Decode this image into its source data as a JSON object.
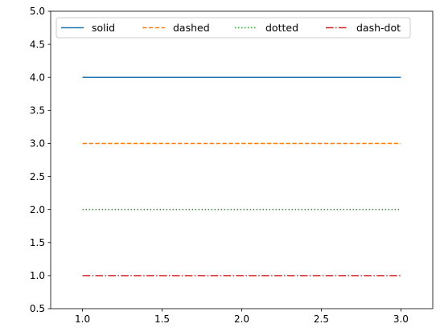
{
  "chart_data": {
    "type": "line",
    "title": "",
    "xlabel": "",
    "ylabel": "",
    "xlim": [
      0.8,
      3.2
    ],
    "ylim": [
      0.5,
      5.0
    ],
    "xticks": [
      1.0,
      1.5,
      2.0,
      2.5,
      3.0
    ],
    "xtick_labels": [
      "1.0",
      "1.5",
      "2.0",
      "2.5",
      "3.0"
    ],
    "yticks": [
      0.5,
      1.0,
      1.5,
      2.0,
      2.5,
      3.0,
      3.5,
      4.0,
      4.5,
      5.0
    ],
    "ytick_labels": [
      "0.5",
      "1.0",
      "1.5",
      "2.0",
      "2.5",
      "3.0",
      "3.5",
      "4.0",
      "4.5",
      "5.0"
    ],
    "grid": false,
    "legend_position": "top-center",
    "series": [
      {
        "name": "solid",
        "x": [
          1,
          2,
          3
        ],
        "y": [
          4,
          4,
          4
        ],
        "color": "#1f77b4",
        "linestyle": "solid"
      },
      {
        "name": "dashed",
        "x": [
          1,
          2,
          3
        ],
        "y": [
          3,
          3,
          3
        ],
        "color": "#ff7f0e",
        "linestyle": "dashed"
      },
      {
        "name": "dotted",
        "x": [
          1,
          2,
          3
        ],
        "y": [
          2,
          2,
          2
        ],
        "color": "#2ca02c",
        "linestyle": "dotted"
      },
      {
        "name": "dash-dot",
        "x": [
          1,
          2,
          3
        ],
        "y": [
          1,
          1,
          1
        ],
        "color": "#d62728",
        "linestyle": "dash-dot"
      }
    ]
  }
}
